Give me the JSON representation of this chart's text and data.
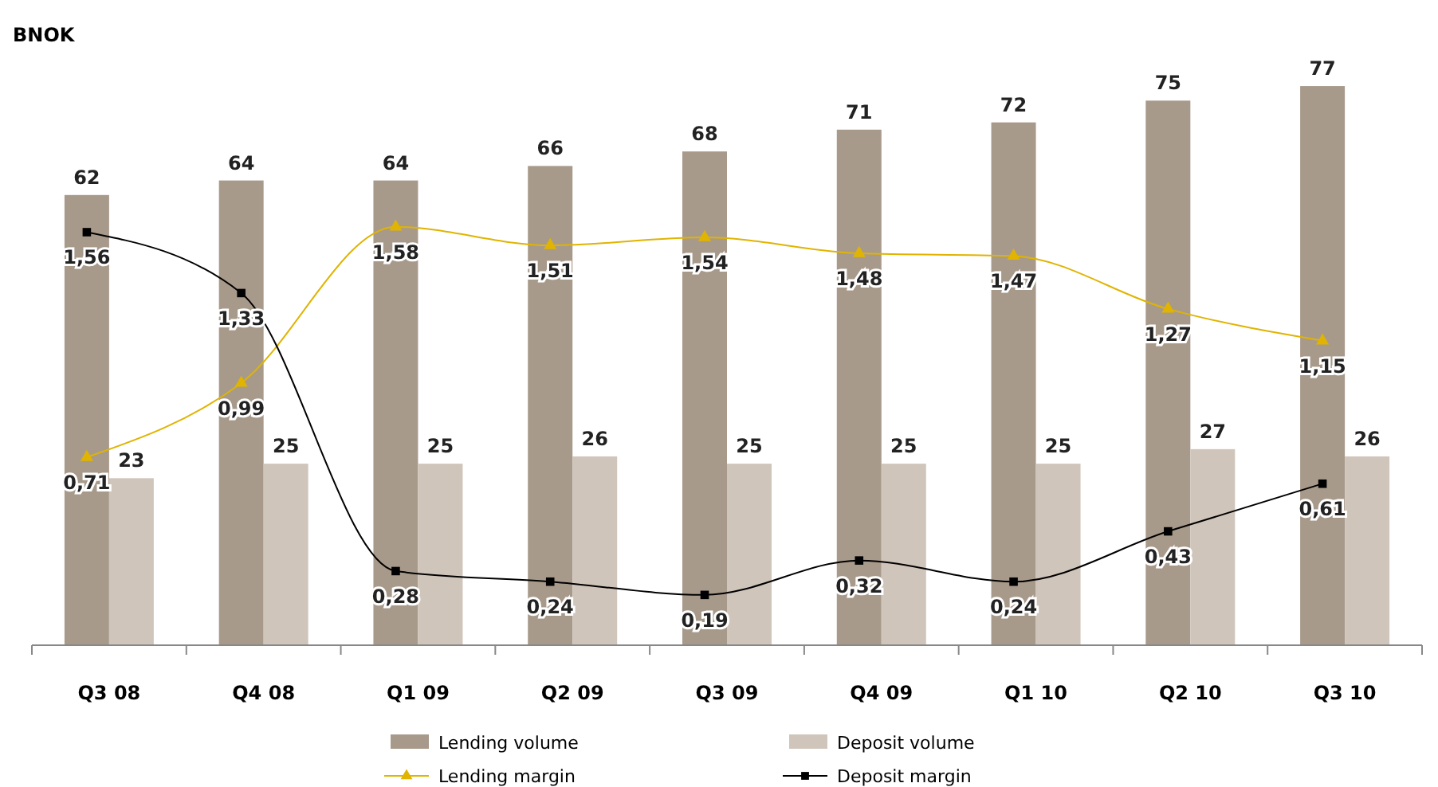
{
  "chart_data": {
    "type": "bar",
    "ylabel": "BNOK",
    "categories": [
      "Q3 08",
      "Q4 08",
      "Q1 09",
      "Q2 09",
      "Q3 09",
      "Q4 09",
      "Q1 10",
      "Q2 10",
      "Q3 10"
    ],
    "tick_labels": "x",
    "data_labels": true,
    "legend": "bottom",
    "series": [
      {
        "name": "Lending volume",
        "color": "#a89a8b",
        "values": [
          62,
          64,
          64,
          66,
          68,
          71,
          72,
          75,
          77
        ]
      },
      {
        "name": "Deposit volume",
        "color": "#d0c5bb",
        "values": [
          23,
          25,
          25,
          26,
          25,
          25,
          25,
          27,
          26
        ]
      },
      {
        "name": "Lending margin",
        "type": "line",
        "axis": "y2",
        "marker": "triangle",
        "color": "#e0b400",
        "values": [
          0.71,
          0.99,
          1.58,
          1.51,
          1.54,
          1.48,
          1.47,
          1.27,
          1.15
        ],
        "value_labels": [
          "0,71",
          "0,99",
          "1,58",
          "1,51",
          "1,54",
          "1,48",
          "1,47",
          "1,27",
          "1,15"
        ]
      },
      {
        "name": "Deposit margin",
        "type": "line",
        "axis": "y2",
        "marker": "square",
        "color": "#000000",
        "values": [
          1.56,
          1.33,
          0.28,
          0.24,
          0.19,
          0.32,
          0.24,
          0.43,
          0.61
        ],
        "value_labels": [
          "1,56",
          "1,33",
          "0,28",
          "0,24",
          "0,19",
          "0,32",
          "0,24",
          "0,43",
          "0,61"
        ]
      }
    ]
  }
}
